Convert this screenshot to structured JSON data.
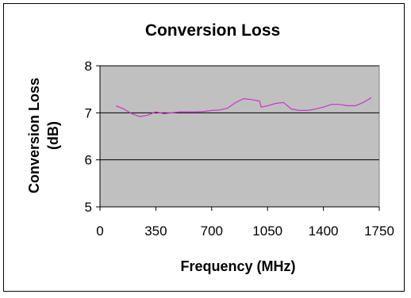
{
  "chart_data": {
    "type": "line",
    "title": "Conversion Loss",
    "xlabel": "Frequency (MHz)",
    "ylabel_line1": "Conversion Loss",
    "ylabel_line2": "(dB)",
    "xlim": [
      0,
      1750
    ],
    "ylim": [
      5,
      8
    ],
    "x_ticks": [
      0,
      350,
      700,
      1050,
      1400,
      1750
    ],
    "y_ticks": [
      5,
      6,
      7,
      8
    ],
    "grid": {
      "horizontal": true,
      "vertical": false
    },
    "plot_background": "#c0c0c0",
    "series": [
      {
        "color": "#cc33cc",
        "x": [
          100,
          150,
          200,
          250,
          300,
          350,
          400,
          450,
          500,
          550,
          600,
          650,
          700,
          750,
          800,
          850,
          900,
          950,
          1000,
          1010,
          1050,
          1100,
          1150,
          1200,
          1250,
          1300,
          1350,
          1400,
          1450,
          1500,
          1550,
          1600,
          1650,
          1700
        ],
        "y": [
          7.15,
          7.08,
          6.98,
          6.92,
          6.95,
          7.02,
          6.98,
          7.0,
          7.02,
          7.02,
          7.02,
          7.03,
          7.05,
          7.06,
          7.1,
          7.22,
          7.3,
          7.28,
          7.25,
          7.12,
          7.15,
          7.2,
          7.22,
          7.08,
          7.05,
          7.05,
          7.08,
          7.12,
          7.18,
          7.18,
          7.15,
          7.15,
          7.22,
          7.32
        ]
      }
    ]
  }
}
